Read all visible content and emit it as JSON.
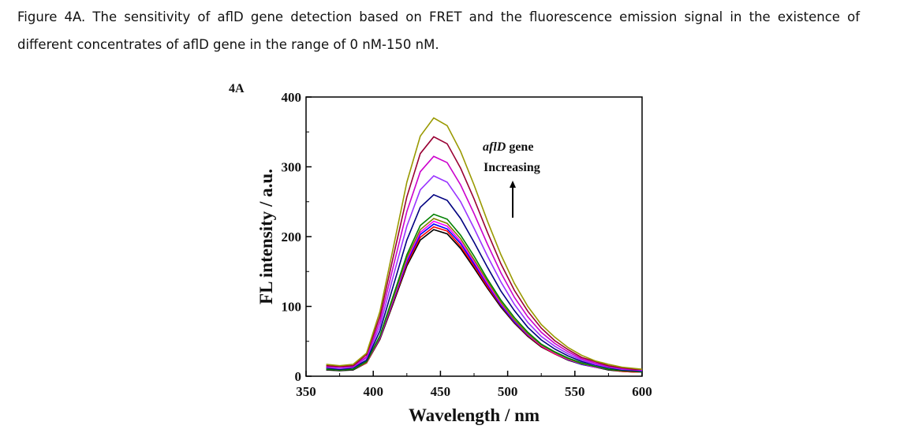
{
  "caption": {
    "label": "Figure 4A",
    "text": ". The sensitivity of aflD gene detection based on FRET and the fluorescence emission signal in the existence of different concentrates of aflD gene in the range of 0 nM-150 nM."
  },
  "chart_data": {
    "type": "line",
    "panel_label": "4A",
    "x_label": "Wavelength / nm",
    "y_label": "FL intensity / a.u.",
    "annotation": {
      "italic": "aflD",
      "rest": " gene",
      "line2": "Increasing"
    },
    "xlim": [
      350,
      600
    ],
    "xticks": [
      350,
      400,
      450,
      500,
      550,
      600
    ],
    "ylim": [
      0,
      400
    ],
    "yticks": [
      0,
      100,
      200,
      300,
      400
    ],
    "x": [
      365,
      375,
      385,
      395,
      405,
      415,
      425,
      435,
      445,
      455,
      465,
      475,
      485,
      495,
      505,
      515,
      525,
      535,
      545,
      555,
      565,
      575,
      585,
      595,
      600
    ],
    "series": [
      {
        "color": "#000000",
        "values": [
          9,
          8,
          9,
          19,
          53,
          105,
          158,
          195,
          210,
          204,
          183,
          155,
          126,
          99,
          76,
          57,
          42,
          32,
          23,
          17,
          13,
          9,
          7,
          6,
          6
        ]
      },
      {
        "color": "#ff0000",
        "values": [
          10,
          9,
          10,
          19,
          54,
          107,
          161,
          199,
          214,
          208,
          186,
          158,
          128,
          101,
          77,
          58,
          43,
          32,
          24,
          17,
          13,
          10,
          7,
          6,
          6
        ]
      },
      {
        "color": "#0000ff",
        "values": [
          10,
          9,
          10,
          20,
          55,
          109,
          164,
          203,
          218,
          211,
          190,
          161,
          131,
          102,
          78,
          59,
          44,
          33,
          24,
          17,
          13,
          10,
          8,
          7,
          6
        ]
      },
      {
        "color": "#ff00ff",
        "values": [
          10,
          9,
          10,
          20,
          56,
          111,
          167,
          206,
          222,
          215,
          193,
          164,
          133,
          104,
          80,
          60,
          44,
          33,
          24,
          18,
          13,
          10,
          8,
          7,
          6
        ]
      },
      {
        "color": "#808000",
        "values": [
          10,
          9,
          10,
          20,
          57,
          113,
          170,
          210,
          226,
          219,
          197,
          167,
          136,
          106,
          81,
          61,
          45,
          34,
          25,
          18,
          14,
          10,
          8,
          7,
          6
        ]
      },
      {
        "color": "#008000",
        "values": [
          10,
          9,
          10,
          21,
          58,
          116,
          174,
          216,
          232,
          225,
          202,
          172,
          139,
          109,
          84,
          63,
          46,
          35,
          26,
          19,
          14,
          10,
          8,
          7,
          6
        ]
      },
      {
        "color": "#000080",
        "values": [
          12,
          10,
          12,
          23,
          65,
          130,
          195,
          242,
          260,
          252,
          226,
          192,
          156,
          122,
          94,
          70,
          52,
          39,
          29,
          21,
          16,
          12,
          9,
          8,
          7
        ]
      },
      {
        "color": "#9933ff",
        "values": [
          13,
          11,
          13,
          26,
          72,
          144,
          215,
          267,
          287,
          278,
          250,
          212,
          172,
          135,
          103,
          77,
          57,
          43,
          32,
          23,
          17,
          13,
          10,
          9,
          8
        ]
      },
      {
        "color": "#cc00cc",
        "values": [
          14,
          13,
          14,
          28,
          79,
          158,
          236,
          293,
          315,
          306,
          274,
          233,
          189,
          148,
          113,
          85,
          63,
          47,
          35,
          25,
          19,
          14,
          11,
          9,
          9
        ]
      },
      {
        "color": "#990033",
        "values": [
          15,
          14,
          15,
          31,
          86,
          172,
          257,
          319,
          343,
          333,
          298,
          254,
          206,
          161,
          123,
          93,
          69,
          51,
          38,
          27,
          21,
          15,
          12,
          10,
          10
        ]
      },
      {
        "color": "#999900",
        "values": [
          17,
          15,
          17,
          33,
          93,
          185,
          278,
          344,
          370,
          359,
          322,
          274,
          222,
          174,
          133,
          100,
          74,
          56,
          41,
          30,
          22,
          17,
          13,
          11,
          10
        ]
      }
    ]
  }
}
